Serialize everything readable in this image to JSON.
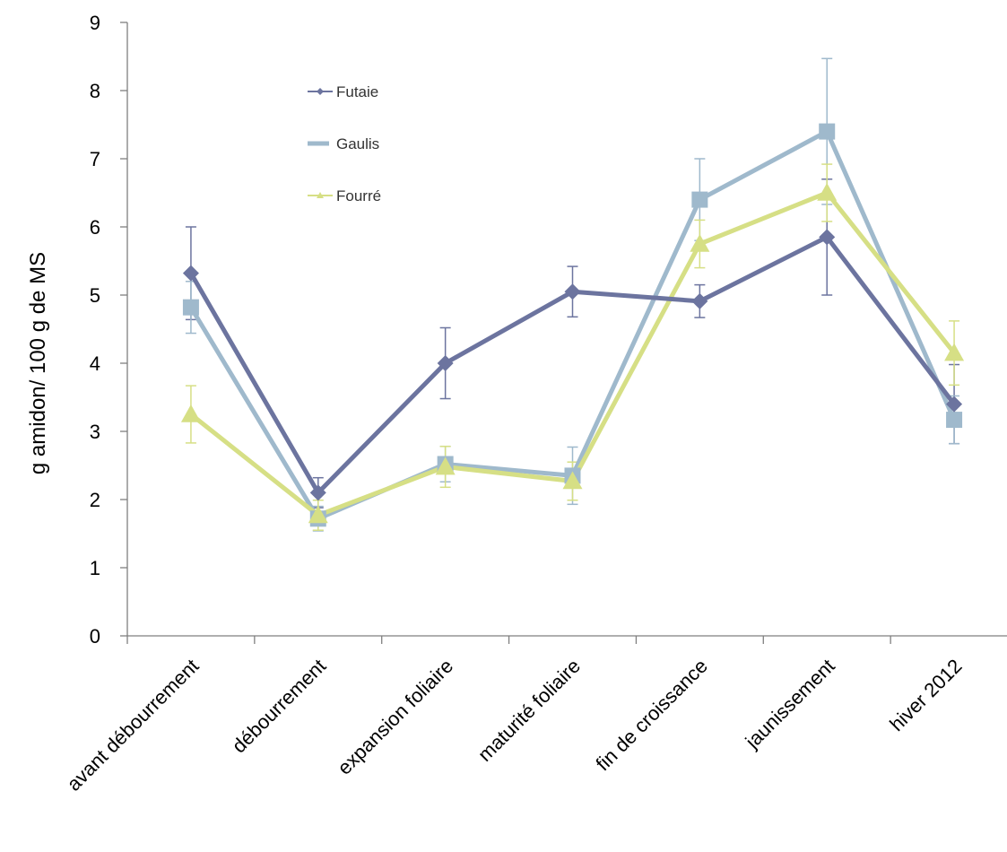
{
  "chart_data": {
    "type": "line",
    "title": "",
    "xlabel": "",
    "ylabel": "g amidon/ 100 g de MS",
    "ylim": [
      0,
      9
    ],
    "yticks": [
      0,
      1,
      2,
      3,
      4,
      5,
      6,
      7,
      8,
      9
    ],
    "grid": false,
    "legend": {
      "placement": "top-left"
    },
    "categories": [
      "avant débourrement",
      "débourrement",
      "expansion foliaire",
      "maturité foliaire",
      "fin de croissance",
      "jaunissement",
      "hiver 2012"
    ],
    "series": [
      {
        "name": "Futaie",
        "color": "#6c749f",
        "marker": "diamond",
        "values": [
          5.32,
          2.1,
          4.0,
          5.05,
          4.91,
          5.85,
          3.4
        ],
        "error": [
          0.68,
          0.22,
          0.52,
          0.37,
          0.24,
          0.85,
          0.58
        ]
      },
      {
        "name": "Gaulis",
        "color": "#9fb9cc",
        "marker": "square",
        "values": [
          4.82,
          1.72,
          2.52,
          2.35,
          6.4,
          7.4,
          3.17
        ],
        "error": [
          0.38,
          0.18,
          0.26,
          0.42,
          0.6,
          1.07,
          0.35
        ]
      },
      {
        "name": "Fourré",
        "color": "#d6df85",
        "marker": "triangle",
        "values": [
          3.25,
          1.77,
          2.48,
          2.27,
          5.75,
          6.5,
          4.15
        ],
        "error": [
          0.42,
          0.22,
          0.3,
          0.28,
          0.35,
          0.42,
          0.47
        ]
      }
    ]
  }
}
